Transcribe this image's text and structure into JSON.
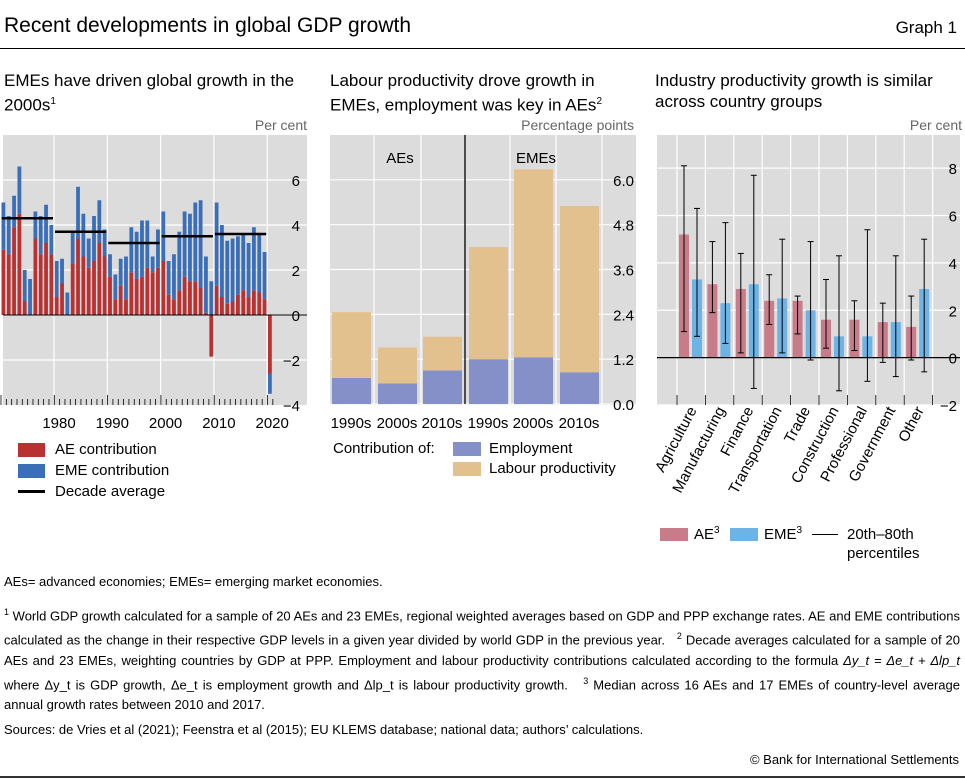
{
  "header": {
    "title": "Recent developments in global GDP growth",
    "graph_label": "Graph 1"
  },
  "colors": {
    "ae": "#b83232",
    "eme": "#3a6fb8",
    "employment": "#8590c8",
    "productivity": "#e3c18f",
    "ae3": "#c87c8a",
    "eme3": "#6db3e6",
    "bg": "#dcdcdc"
  },
  "panels": [
    {
      "title": "EMEs have driven global growth in the 2000s",
      "sup": "1",
      "unit": "Per cent",
      "legend": [
        "AE contribution",
        "EME contribution",
        "Decade average"
      ]
    },
    {
      "title": "Labour productivity drove growth in EMEs, employment was key in AEs",
      "sup": "2",
      "unit": "Percentage points",
      "group_labels": [
        "AEs",
        "EMEs"
      ],
      "legend_prefix": "Contribution of:",
      "legend": [
        "Employment",
        "Labour productivity"
      ]
    },
    {
      "title": "Industry productivity growth is similar across country groups",
      "unit": "Per cent",
      "legend": [
        "AE",
        "EME",
        "20th–80th percentiles"
      ],
      "legend_sup": "3"
    }
  ],
  "chart_data": [
    {
      "type": "bar",
      "stacked": true,
      "x": [
        1970,
        1971,
        1972,
        1973,
        1974,
        1975,
        1976,
        1977,
        1978,
        1979,
        1980,
        1981,
        1982,
        1983,
        1984,
        1985,
        1986,
        1987,
        1988,
        1989,
        1990,
        1991,
        1992,
        1993,
        1994,
        1995,
        1996,
        1997,
        1998,
        1999,
        2000,
        2001,
        2002,
        2003,
        2004,
        2005,
        2006,
        2007,
        2008,
        2009,
        2010,
        2011,
        2012,
        2013,
        2014,
        2015,
        2016,
        2017,
        2018,
        2019,
        2020
      ],
      "series": [
        {
          "name": "AE contribution",
          "values": [
            2.9,
            2.7,
            3.9,
            4.5,
            0.6,
            0.0,
            3.4,
            2.7,
            3.2,
            2.7,
            0.8,
            1.4,
            0.0,
            2.3,
            3.4,
            2.6,
            2.1,
            2.4,
            3.2,
            2.6,
            1.7,
            0.7,
            1.3,
            0.7,
            1.9,
            1.6,
            1.7,
            2.1,
            1.9,
            2.1,
            2.4,
            0.9,
            0.7,
            1.1,
            1.7,
            1.5,
            1.5,
            1.2,
            0.1,
            -1.85,
            1.3,
            0.8,
            0.5,
            0.6,
            0.9,
            1.1,
            0.8,
            1.1,
            1.0,
            0.7,
            -2.6
          ]
        },
        {
          "name": "EME contribution",
          "values": [
            2.1,
            1.7,
            1.4,
            2.1,
            1.4,
            1.6,
            1.2,
            1.7,
            1.7,
            1.3,
            1.6,
            1.1,
            1.0,
            1.4,
            2.3,
            1.9,
            1.3,
            2.0,
            1.9,
            1.2,
            1.0,
            1.1,
            1.2,
            1.9,
            2.0,
            2.1,
            2.5,
            2.1,
            0.7,
            1.7,
            2.2,
            1.5,
            2.0,
            2.6,
            2.9,
            3.0,
            3.5,
            3.9,
            2.5,
            1.5,
            3.7,
            3.2,
            2.8,
            2.8,
            2.6,
            2.5,
            2.4,
            2.8,
            2.6,
            2.1,
            -0.9
          ]
        }
      ],
      "decade_average": [
        {
          "decade": "1970s",
          "value": 4.3
        },
        {
          "decade": "1980s",
          "value": 3.7
        },
        {
          "decade": "1990s",
          "value": 3.2
        },
        {
          "decade": "2000s",
          "value": 3.5
        },
        {
          "decade": "2010s",
          "value": 3.6
        }
      ],
      "x_ticks": [
        "1980",
        "1990",
        "2000",
        "2010",
        "2020"
      ],
      "y_ticks": [
        "6",
        "4",
        "2",
        "0",
        "−2",
        "−4"
      ],
      "ylim": [
        -4,
        8
      ],
      "ylabel": "Per cent"
    },
    {
      "type": "bar",
      "stacked": true,
      "categories": [
        "1990s",
        "2000s",
        "2010s",
        "1990s",
        "2000s",
        "2010s"
      ],
      "groups": [
        "AEs",
        "AEs",
        "AEs",
        "EMEs",
        "EMEs",
        "EMEs"
      ],
      "series": [
        {
          "name": "Employment",
          "values": [
            0.7,
            0.55,
            0.9,
            1.2,
            1.25,
            0.85
          ]
        },
        {
          "name": "Labour productivity",
          "values": [
            1.76,
            0.96,
            0.9,
            3.0,
            5.03,
            4.45
          ]
        }
      ],
      "y_ticks": [
        "6.0",
        "4.8",
        "3.6",
        "2.4",
        "1.2",
        "0.0"
      ],
      "ylim": [
        0,
        7.2
      ],
      "ylabel": "Percentage points"
    },
    {
      "type": "bar",
      "categories": [
        "Agriculture",
        "Manufacturing",
        "Finance",
        "Transportation",
        "Trade",
        "Construction",
        "Professional",
        "Government",
        "Other"
      ],
      "series": [
        {
          "name": "AE",
          "values": [
            5.2,
            3.1,
            2.9,
            2.4,
            2.4,
            1.6,
            1.6,
            1.5,
            1.3
          ],
          "p20": [
            1.1,
            1.9,
            0.2,
            1.4,
            1.0,
            0.4,
            0.3,
            -0.2,
            -0.1
          ],
          "p80": [
            8.1,
            4.9,
            4.4,
            3.5,
            2.6,
            3.3,
            2.4,
            2.3,
            2.6
          ]
        },
        {
          "name": "EME",
          "values": [
            3.3,
            2.3,
            3.1,
            2.5,
            2.0,
            0.9,
            0.9,
            1.5,
            2.9
          ],
          "p20": [
            0.9,
            0.6,
            -1.3,
            0.2,
            -0.1,
            -1.4,
            -1.0,
            -0.8,
            -0.6
          ],
          "p80": [
            6.3,
            5.7,
            7.7,
            5.0,
            4.9,
            4.3,
            5.4,
            4.3,
            5.0
          ]
        }
      ],
      "y_ticks": [
        "8",
        "6",
        "4",
        "2",
        "0",
        "−2"
      ],
      "ylim": [
        -2,
        9.4
      ],
      "ylabel": "Per cent"
    }
  ],
  "notes": {
    "abbrev": "AEs= advanced economies; EMEs= emerging market economies.",
    "fn1_num": "1",
    "fn1": "World GDP growth calculated for a sample of 20 AEs and 23 EMEs, regional weighted averages based on GDP and PPP exchange rates. AE and EME contributions calculated as the change in their respective GDP levels in a given year divided by world GDP in the previous year.",
    "fn2_num": "2",
    "fn2a": "Decade averages calculated for a sample of 20 AEs and 23 EMEs, weighting countries by GDP at PPP. Employment and labour productivity contributions calculated according to the formula ",
    "fn2_formula": "Δy_t = Δe_t + Δlp_t",
    "fn2b": " where Δy_t is GDP growth, Δe_t is employment growth and Δlp_t is labour productivity growth.",
    "fn3_num": "3",
    "fn3": "Median across 16 AEs and 17 EMEs of country-level average annual growth rates between 2010 and 2017.",
    "sources": "Sources: de Vries et al (2021); Feenstra et al (2015); EU KLEMS database; national data; authors’ calculations.",
    "copyright": "© Bank for International Settlements"
  }
}
